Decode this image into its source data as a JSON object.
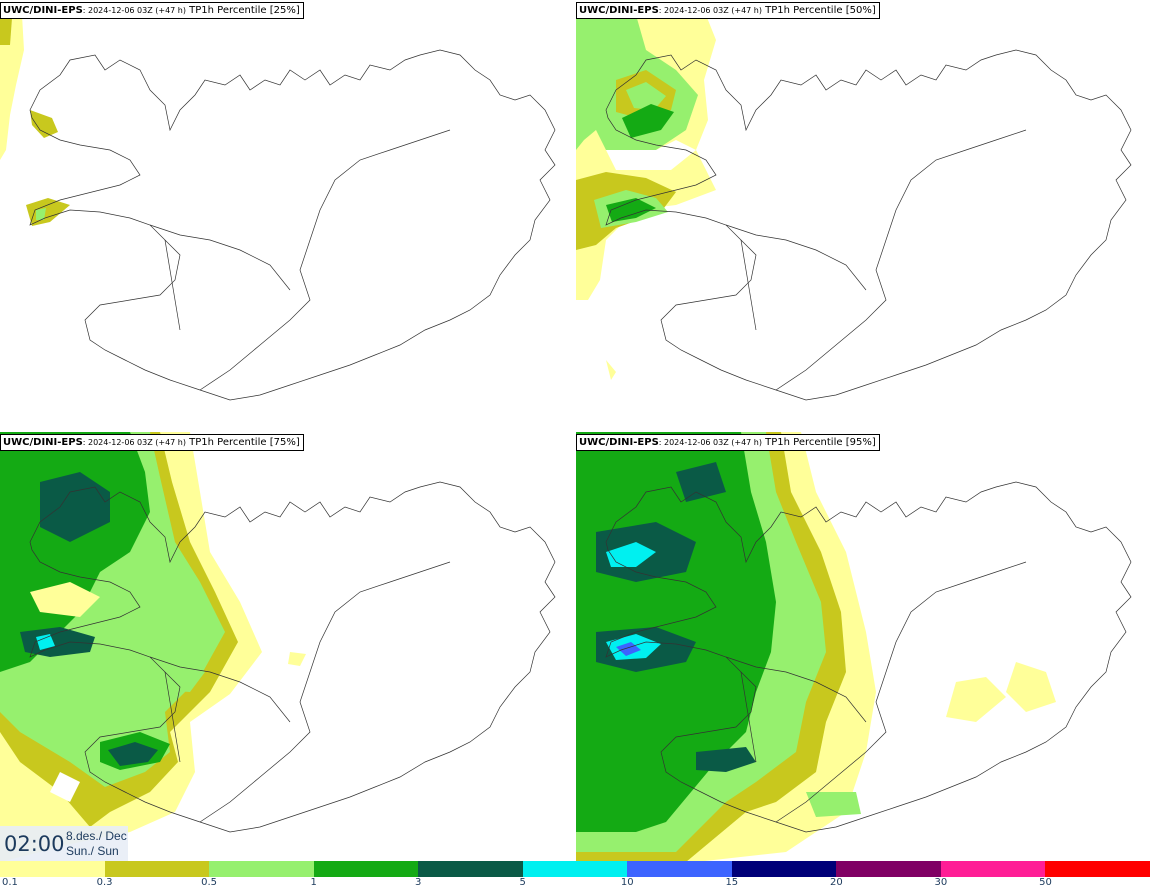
{
  "panels": [
    {
      "model": "UWC/DINI-EPS",
      "run": ": 2024-12-06 03Z (+47 h)",
      "field": " TP1h Percentile [25%]"
    },
    {
      "model": "UWC/DINI-EPS",
      "run": ": 2024-12-06 03Z (+47 h)",
      "field": " TP1h Percentile [50%]"
    },
    {
      "model": "UWC/DINI-EPS",
      "run": ": 2024-12-06 03Z (+47 h)",
      "field": " TP1h Percentile [75%]"
    },
    {
      "model": "UWC/DINI-EPS",
      "run": ": 2024-12-06 03Z (+47 h)",
      "field": " TP1h Percentile [95%]"
    }
  ],
  "time": {
    "hour": "02:00",
    "date_line1": "8.des./ Dec",
    "date_line2": "Sun./ Sun"
  },
  "colorbar": {
    "labels": [
      "0.1",
      "0.3",
      "0.5",
      "1",
      "3",
      "5",
      "10",
      "15",
      "20",
      "30",
      "50"
    ],
    "colors": [
      "#ffff99",
      "#c8c81e",
      "#96f06e",
      "#14aa14",
      "#0a5a46",
      "#00f0f0",
      "#3c64ff",
      "#000078",
      "#800064",
      "#ff1e96",
      "#ff0000"
    ]
  }
}
